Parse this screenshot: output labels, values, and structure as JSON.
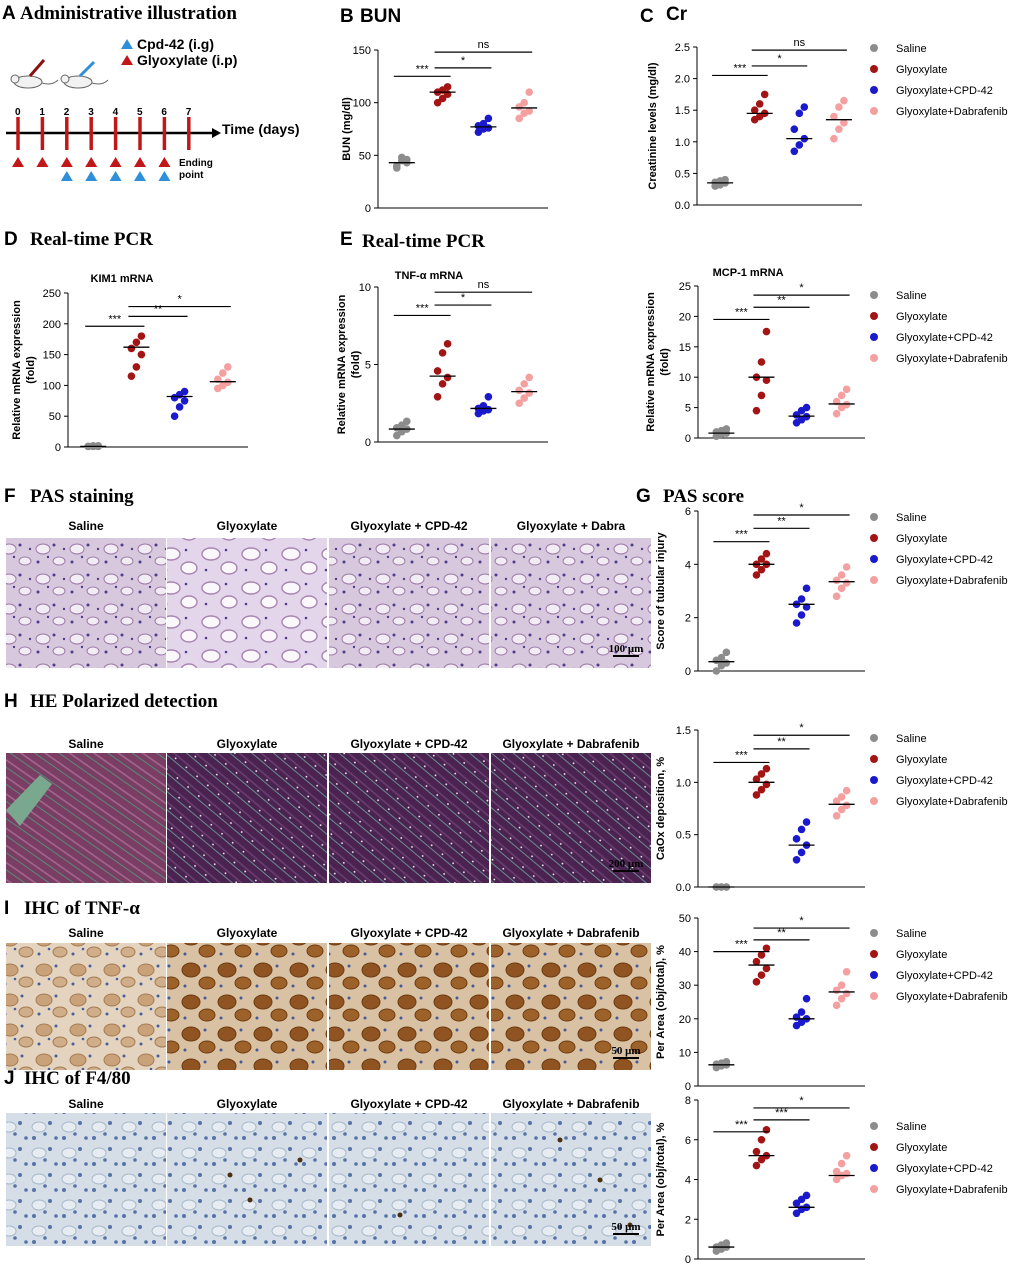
{
  "panel_letters": [
    "A",
    "B",
    "C",
    "D",
    "E",
    "F",
    "G",
    "H",
    "I",
    "J"
  ],
  "panel_titles": {
    "A": "Administrative illustration",
    "B": "BUN",
    "C": "Cr",
    "D": "Real-time PCR",
    "E": "Real-time PCR",
    "F": "PAS staining",
    "G": "PAS score",
    "H": "HE Polarized detection",
    "I": "IHC of TNF-α",
    "J": "IHC of F4/80"
  },
  "colors": {
    "saline": "#8c8c8c",
    "glyoxylate": "#a31515",
    "cpd42": "#1a1acc",
    "dabrafenib": "#f5a0a0",
    "cpd_marker": "#2f8fd8",
    "gly_marker": "#c01818",
    "timeline": "#c01818"
  },
  "legend": [
    "Saline",
    "Glyoxylate",
    "Glyoxylate+CPD-42",
    "Glyoxylate+Dabrafenib"
  ],
  "timeline": {
    "legend_cpd": "Cpd-42 (i.g)",
    "legend_gly": "Glyoxylate (i.p)",
    "days": [
      "0",
      "1",
      "2",
      "3",
      "4",
      "5",
      "6",
      "7"
    ],
    "axis_label": "Time (days)",
    "end_label_1": "Ending",
    "end_label_2": "point",
    "glyoxylate_days": [
      0,
      1,
      2,
      3,
      4,
      5,
      6
    ],
    "cpd42_days": [
      2,
      3,
      4,
      5,
      6
    ]
  },
  "image_rows": {
    "F": {
      "labels": [
        "Saline",
        "Glyoxylate",
        "Glyoxylate + CPD-42",
        "Glyoxylate + Dabra"
      ],
      "scale_bar": "100 μm"
    },
    "H": {
      "labels": [
        "Saline",
        "Glyoxylate",
        "Glyoxylate + CPD-42",
        "Glyoxylate + Dabrafenib"
      ],
      "scale_bar": "200 μm"
    },
    "I": {
      "labels": [
        "Saline",
        "Glyoxylate",
        "Glyoxylate + CPD-42",
        "Glyoxylate + Dabrafenib"
      ],
      "scale_bar": "50 μm"
    },
    "J": {
      "labels": [
        "Saline",
        "Glyoxylate",
        "Glyoxylate + CPD-42",
        "Glyoxylate + Dabrafenib"
      ],
      "scale_bar": "50 μm"
    }
  },
  "chart_data": [
    {
      "id": "B",
      "type": "scatter",
      "title": "BUN",
      "subtitle": "",
      "ylabel": "BUN (mg/dl)",
      "ylim": [
        0,
        150
      ],
      "yticks": [
        "0",
        "50",
        "100",
        "150"
      ],
      "groups": [
        "Saline",
        "Glyoxylate",
        "Glyoxylate+CPD-42",
        "Glyoxylate+Dabrafenib"
      ],
      "points": [
        [
          38,
          45,
          43,
          40,
          48,
          46
        ],
        [
          100,
          104,
          108,
          110,
          112,
          115
        ],
        [
          72,
          75,
          76,
          78,
          80,
          85
        ],
        [
          85,
          90,
          92,
          96,
          100,
          110
        ]
      ],
      "means": [
        43,
        110,
        77,
        95
      ],
      "sig": [
        {
          "from": 0,
          "to": 1,
          "label": "***",
          "y": 125
        },
        {
          "from": 1,
          "to": 2,
          "label": "*",
          "y": 133
        },
        {
          "from": 1,
          "to": 3,
          "label": "ns",
          "y": 148
        }
      ],
      "legend": false
    },
    {
      "id": "C",
      "type": "scatter",
      "title": "Cr",
      "subtitle": "",
      "ylabel": "Creatinine levels (mg/dl)",
      "ylim": [
        0,
        2.5
      ],
      "yticks": [
        "0.0",
        "0.5",
        "1.0",
        "1.5",
        "2.0",
        "2.5"
      ],
      "groups": [
        "Saline",
        "Glyoxylate",
        "Glyoxylate+CPD-42",
        "Glyoxylate+Dabrafenib"
      ],
      "points": [
        [
          0.3,
          0.32,
          0.35,
          0.36,
          0.38,
          0.4
        ],
        [
          1.35,
          1.4,
          1.45,
          1.5,
          1.6,
          1.75
        ],
        [
          0.85,
          0.95,
          1.05,
          1.2,
          1.45,
          1.55
        ],
        [
          1.05,
          1.2,
          1.3,
          1.4,
          1.55,
          1.65
        ]
      ],
      "means": [
        0.35,
        1.45,
        1.05,
        1.35
      ],
      "sig": [
        {
          "from": 0,
          "to": 1,
          "label": "***",
          "y": 2.05
        },
        {
          "from": 1,
          "to": 2,
          "label": "*",
          "y": 2.2
        },
        {
          "from": 1,
          "to": 3,
          "label": "ns",
          "y": 2.45
        }
      ],
      "legend": true
    },
    {
      "id": "D",
      "type": "scatter",
      "title": "Real-time PCR",
      "subtitle": "KIM1 mRNA",
      "ylabel": "Relative mRNA expression (fold)",
      "ylim": [
        0,
        250
      ],
      "yticks": [
        "0",
        "50",
        "100",
        "150",
        "200",
        "250"
      ],
      "groups": [
        "Saline",
        "Glyoxylate",
        "Glyoxylate+CPD-42",
        "Glyoxylate+Dabrafenib"
      ],
      "points": [
        [
          1,
          1,
          2,
          1,
          2,
          1
        ],
        [
          115,
          130,
          150,
          160,
          170,
          180
        ],
        [
          50,
          65,
          75,
          80,
          85,
          90
        ],
        [
          95,
          100,
          105,
          110,
          120,
          130
        ]
      ],
      "means": [
        1,
        162,
        82,
        106
      ],
      "sig": [
        {
          "from": 0,
          "to": 1,
          "label": "***",
          "y": 196
        },
        {
          "from": 1,
          "to": 2,
          "label": "**",
          "y": 212
        },
        {
          "from": 1,
          "to": 3,
          "label": "*",
          "y": 228
        }
      ],
      "legend": false
    },
    {
      "id": "E1",
      "type": "scatter",
      "title": "Real-time PCR",
      "subtitle": "TNF-α mRNA",
      "ylabel": "Relative mRNA expression (fold)",
      "ylim": [
        0,
        12
      ],
      "yticks": [
        "0",
        "5",
        "10"
      ],
      "groups": [
        "Saline",
        "Glyoxylate",
        "Glyoxylate+CPD-42",
        "Glyoxylate+Dabrafenib"
      ],
      "points": [
        [
          0.5,
          0.8,
          1.0,
          1.1,
          1.3,
          1.6
        ],
        [
          3.5,
          4.5,
          5.0,
          5.5,
          6.9,
          7.6
        ],
        [
          2.2,
          2.4,
          2.5,
          2.6,
          2.8,
          3.5
        ],
        [
          3.0,
          3.4,
          3.8,
          4.0,
          4.5,
          5.0
        ]
      ],
      "means": [
        1.0,
        5.1,
        2.6,
        3.9
      ],
      "sig": [
        {
          "from": 0,
          "to": 1,
          "label": "***",
          "y": 9.8
        },
        {
          "from": 1,
          "to": 2,
          "label": "*",
          "y": 10.6
        },
        {
          "from": 1,
          "to": 3,
          "label": "ns",
          "y": 11.6
        }
      ],
      "legend": false
    },
    {
      "id": "E2",
      "type": "scatter",
      "title": "",
      "subtitle": "MCP-1 mRNA",
      "ylabel": "Relative mRNA expression (fold)",
      "ylim": [
        0,
        25
      ],
      "yticks": [
        "0",
        "5",
        "10",
        "15",
        "20",
        "25"
      ],
      "groups": [
        "Saline",
        "Glyoxylate",
        "Glyoxylate+CPD-42",
        "Glyoxylate+Dabrafenib"
      ],
      "points": [
        [
          0.3,
          0.6,
          0.8,
          1.0,
          1.2,
          1.5
        ],
        [
          4.5,
          7.0,
          9.5,
          10.0,
          12.5,
          17.5
        ],
        [
          2.5,
          3.0,
          3.5,
          3.8,
          4.5,
          5.0
        ],
        [
          4.0,
          5.0,
          5.5,
          6.0,
          7.0,
          8.0
        ]
      ],
      "means": [
        0.8,
        10.0,
        3.6,
        5.6
      ],
      "sig": [
        {
          "from": 0,
          "to": 1,
          "label": "***",
          "y": 19.5
        },
        {
          "from": 1,
          "to": 2,
          "label": "**",
          "y": 21.5
        },
        {
          "from": 1,
          "to": 3,
          "label": "*",
          "y": 23.5
        }
      ],
      "legend": true
    },
    {
      "id": "G",
      "type": "scatter",
      "title": "PAS score",
      "subtitle": "",
      "ylabel": "Score of tubular injury",
      "ylim": [
        0,
        6
      ],
      "yticks": [
        "0",
        "2",
        "4",
        "6"
      ],
      "groups": [
        "Saline",
        "Glyoxylate",
        "Glyoxylate+CPD-42",
        "Glyoxylate+Dabrafenib"
      ],
      "points": [
        [
          0,
          0.2,
          0.3,
          0.4,
          0.5,
          0.7
        ],
        [
          3.6,
          3.8,
          4.0,
          4.0,
          4.2,
          4.4
        ],
        [
          1.8,
          2.1,
          2.4,
          2.5,
          2.7,
          3.1
        ],
        [
          2.8,
          3.1,
          3.3,
          3.4,
          3.6,
          3.9
        ]
      ],
      "means": [
        0.35,
        4.0,
        2.5,
        3.35
      ],
      "sig": [
        {
          "from": 0,
          "to": 1,
          "label": "***",
          "y": 4.85
        },
        {
          "from": 1,
          "to": 2,
          "label": "**",
          "y": 5.35
        },
        {
          "from": 1,
          "to": 3,
          "label": "*",
          "y": 5.85
        }
      ],
      "legend": true
    },
    {
      "id": "H",
      "type": "scatter",
      "title": "",
      "subtitle": "",
      "ylabel": "CaOx deposition, %",
      "ylim": [
        0,
        1.5
      ],
      "yticks": [
        "0.0",
        "0.5",
        "1.0",
        "1.5"
      ],
      "groups": [
        "Saline",
        "Glyoxylate",
        "Glyoxylate+CPD-42",
        "Glyoxylate+Dabrafenib"
      ],
      "points": [
        [
          0,
          0,
          0,
          0,
          0,
          0
        ],
        [
          0.88,
          0.93,
          0.98,
          1.03,
          1.08,
          1.13
        ],
        [
          0.26,
          0.33,
          0.4,
          0.46,
          0.55,
          0.62
        ],
        [
          0.68,
          0.74,
          0.78,
          0.82,
          0.86,
          0.92
        ]
      ],
      "means": [
        0,
        1.0,
        0.4,
        0.79
      ],
      "sig": [
        {
          "from": 0,
          "to": 1,
          "label": "***",
          "y": 1.19
        },
        {
          "from": 1,
          "to": 2,
          "label": "**",
          "y": 1.32
        },
        {
          "from": 1,
          "to": 3,
          "label": "*",
          "y": 1.45
        }
      ],
      "legend": true
    },
    {
      "id": "I",
      "type": "scatter",
      "title": "",
      "subtitle": "",
      "ylabel": "Per Area (obj/total), %",
      "ylim": [
        0,
        50
      ],
      "yticks": [
        "0",
        "10",
        "20",
        "30",
        "40",
        "50"
      ],
      "groups": [
        "Saline",
        "Glyoxylate",
        "Glyoxylate+CPD-42",
        "Glyoxylate+Dabrafenib"
      ],
      "points": [
        [
          5.5,
          6.0,
          6.3,
          6.5,
          6.8,
          7.2
        ],
        [
          31,
          33,
          35,
          37,
          39,
          41
        ],
        [
          18,
          19,
          20,
          20.5,
          22,
          26
        ],
        [
          24,
          26,
          27.5,
          28.5,
          30,
          34
        ]
      ],
      "means": [
        6.3,
        36,
        20,
        28
      ],
      "sig": [
        {
          "from": 0,
          "to": 1,
          "label": "***",
          "y": 40
        },
        {
          "from": 1,
          "to": 2,
          "label": "**",
          "y": 43.5
        },
        {
          "from": 1,
          "to": 3,
          "label": "*",
          "y": 47
        }
      ],
      "legend": true
    },
    {
      "id": "J",
      "type": "scatter",
      "title": "",
      "subtitle": "",
      "ylabel": "Per Area (obj/total), %",
      "ylim": [
        0,
        8
      ],
      "yticks": [
        "0",
        "2",
        "4",
        "6",
        "8"
      ],
      "groups": [
        "Saline",
        "Glyoxylate",
        "Glyoxylate+CPD-42",
        "Glyoxylate+Dabrafenib"
      ],
      "points": [
        [
          0.4,
          0.5,
          0.6,
          0.6,
          0.7,
          0.8
        ],
        [
          4.7,
          5.0,
          5.2,
          5.4,
          6.0,
          6.5
        ],
        [
          2.3,
          2.5,
          2.6,
          2.8,
          3.0,
          3.2
        ],
        [
          4.0,
          4.2,
          4.3,
          4.4,
          4.8,
          5.2
        ]
      ],
      "means": [
        0.6,
        5.2,
        2.6,
        4.2
      ],
      "sig": [
        {
          "from": 0,
          "to": 1,
          "label": "***",
          "y": 6.4
        },
        {
          "from": 1,
          "to": 2,
          "label": "***",
          "y": 7.0
        },
        {
          "from": 1,
          "to": 3,
          "label": "*",
          "y": 7.6
        }
      ],
      "legend": true
    }
  ]
}
